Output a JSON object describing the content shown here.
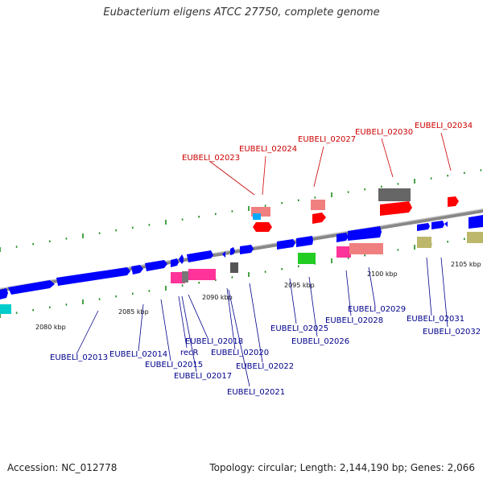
{
  "title": "Eubacterium eligens ATCC 27750, complete genome",
  "accession": "Accession: NC_012778",
  "topology": "Topology: circular; Length: 2,144,190 bp; Genes: 2,066",
  "colors": {
    "forward": "#0000ff",
    "reverse": "#ff0000",
    "tick": "#1a8a1a",
    "backbone": "#888888",
    "label_forward": "#00008b",
    "label_reverse": "#cc0000"
  },
  "kbp_ticks": [
    "2080 kbp",
    "2085 kbp",
    "2090 kbp",
    "2095 kbp",
    "2100 kbp",
    "2105 kbp"
  ],
  "genes_forward": [
    "EUBELI_02013",
    "EUBELI_02014",
    "EUBELI_02015",
    "EUBELI_02017",
    "recR",
    "EUBELI_02018",
    "EUBELI_02020",
    "EUBELI_02021",
    "EUBELI_02022",
    "EUBELI_02025",
    "EUBELI_02026",
    "EUBELI_02028",
    "EUBELI_02029",
    "EUBELI_02031",
    "EUBELI_02032"
  ],
  "genes_reverse": [
    "EUBELI_02023",
    "EUBELI_02024",
    "EUBELI_02027",
    "EUBELI_02030",
    "EUBELI_02034"
  ]
}
